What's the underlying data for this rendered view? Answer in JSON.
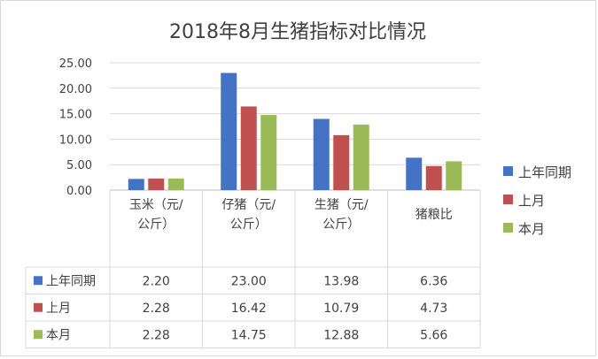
{
  "chart_data": {
    "type": "bar",
    "title": "2018年8月生猪指标对比情况",
    "categories": [
      [
        "玉米（元/",
        "公斤）"
      ],
      [
        "仔猪（元/",
        "公斤）"
      ],
      [
        "生猪（元/",
        "公斤）"
      ],
      [
        "猪粮比"
      ]
    ],
    "y_ticks": [
      "0.00",
      "5.00",
      "10.00",
      "15.00",
      "20.00",
      "25.00"
    ],
    "ylim": [
      0,
      25
    ],
    "grid": true,
    "legend_position": "right",
    "series": [
      {
        "name": "上年同期",
        "color": "#4472c4",
        "values": [
          2.2,
          23.0,
          13.98,
          6.36
        ],
        "labels": [
          "2.20",
          "23.00",
          "13.98",
          "6.36"
        ]
      },
      {
        "name": "上月",
        "color": "#c0504d",
        "values": [
          2.28,
          16.42,
          10.79,
          4.73
        ],
        "labels": [
          "2.28",
          "16.42",
          "10.79",
          "4.73"
        ]
      },
      {
        "name": "本月",
        "color": "#9bbb59",
        "values": [
          2.28,
          14.75,
          12.88,
          5.66
        ],
        "labels": [
          "2.28",
          "14.75",
          "12.88",
          "5.66"
        ]
      }
    ]
  }
}
